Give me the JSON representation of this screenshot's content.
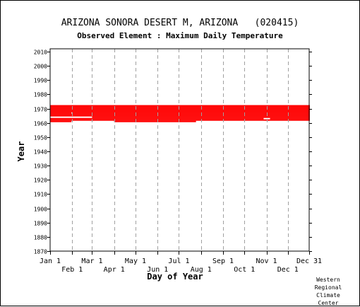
{
  "chart_data": {
    "type": "heatmap",
    "title": "ARIZONA SONORA DESERT M, ARIZONA   (020415)",
    "subtitle": "Observed Element : Maximum Daily Temperature",
    "xlabel": "Day of Year",
    "ylabel": "Year",
    "x_ticks_upper": [
      "Jan 1",
      "Mar 1",
      "May 1",
      "Jul 1",
      "Sep 1",
      "Nov 1",
      "Dec 31"
    ],
    "x_ticks_lower": [
      "Feb 1",
      "Apr 1",
      "Jun 1",
      "Aug 1",
      "Oct 1",
      "Dec 1"
    ],
    "x_tick_days": [
      1,
      32,
      60,
      91,
      121,
      152,
      182,
      213,
      244,
      274,
      305,
      335,
      365
    ],
    "xlim": [
      1,
      365
    ],
    "ylim": [
      1870,
      2012
    ],
    "y_ticks": [
      1870,
      1880,
      1890,
      1900,
      1910,
      1920,
      1930,
      1940,
      1950,
      1960,
      1970,
      1980,
      1990,
      2000,
      2010
    ],
    "grid": true,
    "bar_color": "#ff0000",
    "period_of_record_years": [
      1960,
      1972
    ],
    "data_present": [
      {
        "year": 1972,
        "start_day": 1,
        "end_day": 365
      },
      {
        "year": 1971,
        "start_day": 1,
        "end_day": 365
      },
      {
        "year": 1970,
        "start_day": 1,
        "end_day": 365
      },
      {
        "year": 1969,
        "start_day": 1,
        "end_day": 365
      },
      {
        "year": 1968,
        "start_day": 1,
        "end_day": 365
      },
      {
        "year": 1967,
        "start_day": 1,
        "end_day": 30
      },
      {
        "year": 1967,
        "start_day": 32,
        "end_day": 365
      },
      {
        "year": 1966,
        "start_day": 1,
        "end_day": 365
      },
      {
        "year": 1965,
        "start_day": 1,
        "end_day": 365
      },
      {
        "year": 1964,
        "start_day": 60,
        "end_day": 365
      },
      {
        "year": 1963,
        "start_day": 1,
        "end_day": 300
      },
      {
        "year": 1963,
        "start_day": 310,
        "end_day": 365
      },
      {
        "year": 1962,
        "start_day": 1,
        "end_day": 365
      },
      {
        "year": 1961,
        "start_day": 1,
        "end_day": 30
      },
      {
        "year": 1961,
        "start_day": 91,
        "end_day": 205
      }
    ]
  },
  "credit": "Western\nRegional\nClimate\nCenter"
}
